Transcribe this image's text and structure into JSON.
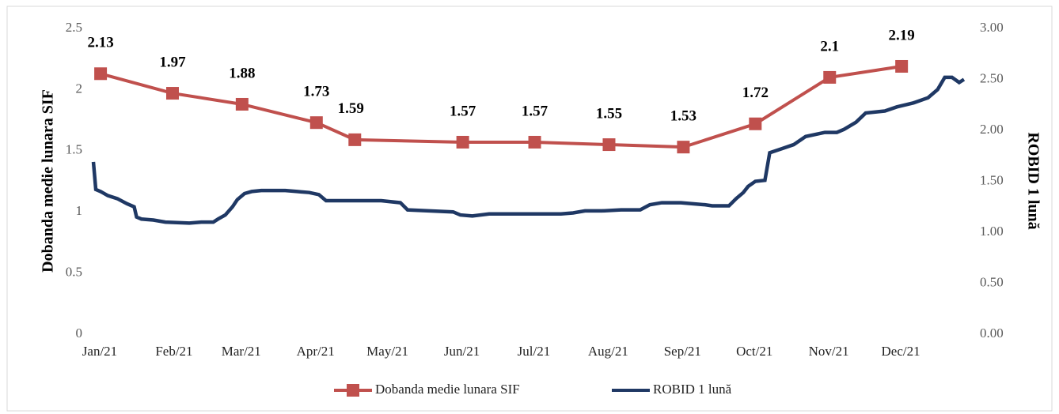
{
  "chart_data": {
    "type": "line",
    "y_label": "Dobanda medie lunara SIF",
    "y2_label": "ROBID 1 lună",
    "xlim": [
      0,
      365
    ],
    "xticks": [
      {
        "value": 0,
        "label": "Jan/21"
      },
      {
        "value": 31,
        "label": "Feb/21"
      },
      {
        "value": 59,
        "label": "Mar/21"
      },
      {
        "value": 90,
        "label": "Apr/21"
      },
      {
        "value": 120,
        "label": "May/21"
      },
      {
        "value": 151,
        "label": "Jun/21"
      },
      {
        "value": 181,
        "label": "Jul/21"
      },
      {
        "value": 212,
        "label": "Aug/21"
      },
      {
        "value": 243,
        "label": "Sep/21"
      },
      {
        "value": 273,
        "label": "Oct/21"
      },
      {
        "value": 304,
        "label": "Nov/21"
      },
      {
        "value": 334,
        "label": "Dec/21"
      }
    ],
    "ylim": [
      0,
      2.5
    ],
    "yticks": [
      0,
      0.5,
      1,
      1.5,
      2,
      2.5
    ],
    "y2lim": [
      0,
      3
    ],
    "y2ticks": [
      {
        "value": 0,
        "label": "0.00"
      },
      {
        "value": 0.5,
        "label": "0.50"
      },
      {
        "value": 1,
        "label": "1.00"
      },
      {
        "value": 1.5,
        "label": "1.50"
      },
      {
        "value": 2,
        "label": "2.00"
      },
      {
        "value": 2.5,
        "label": "2.50"
      },
      {
        "value": 3,
        "label": "3.00"
      }
    ],
    "legend": "bottom",
    "series": [
      {
        "name": "Dobanda medie lunara SIF",
        "color": "#c0504d",
        "marker": "square",
        "axis": "y",
        "x": [
          3,
          33,
          62,
          93,
          109,
          154,
          184,
          215,
          246,
          276,
          307,
          337
        ],
        "values": [
          2.13,
          1.97,
          1.88,
          1.73,
          1.59,
          1.57,
          1.57,
          1.55,
          1.53,
          1.72,
          2.1,
          2.19
        ]
      },
      {
        "name": "ROBID 1 lună",
        "color": "#1f3864",
        "axis": "y2",
        "x": [
          0,
          1,
          3,
          6,
          10,
          14,
          17,
          18,
          20,
          25,
          30,
          40,
          45,
          50,
          52,
          55,
          58,
          60,
          63,
          66,
          70,
          80,
          85,
          90,
          94,
          97,
          110,
          120,
          128,
          131,
          140,
          150,
          153,
          158,
          165,
          180,
          195,
          200,
          205,
          212,
          220,
          228,
          232,
          237,
          245,
          255,
          258,
          265,
          268,
          271,
          273,
          276,
          280,
          282,
          287,
          292,
          297,
          305,
          310,
          313,
          318,
          322,
          330,
          335,
          342,
          348,
          352,
          355,
          358,
          361,
          363
        ],
        "values": [
          1.69,
          1.42,
          1.4,
          1.36,
          1.33,
          1.28,
          1.25,
          1.15,
          1.13,
          1.12,
          1.1,
          1.09,
          1.1,
          1.1,
          1.13,
          1.17,
          1.25,
          1.32,
          1.38,
          1.4,
          1.41,
          1.41,
          1.4,
          1.39,
          1.37,
          1.31,
          1.31,
          1.31,
          1.29,
          1.22,
          1.21,
          1.2,
          1.17,
          1.16,
          1.18,
          1.18,
          1.18,
          1.19,
          1.21,
          1.21,
          1.22,
          1.22,
          1.27,
          1.29,
          1.29,
          1.27,
          1.26,
          1.26,
          1.33,
          1.39,
          1.45,
          1.5,
          1.51,
          1.78,
          1.82,
          1.86,
          1.94,
          1.98,
          1.98,
          2.01,
          2.08,
          2.17,
          2.19,
          2.23,
          2.27,
          2.32,
          2.4,
          2.52,
          2.52,
          2.47,
          2.5
        ]
      }
    ]
  }
}
